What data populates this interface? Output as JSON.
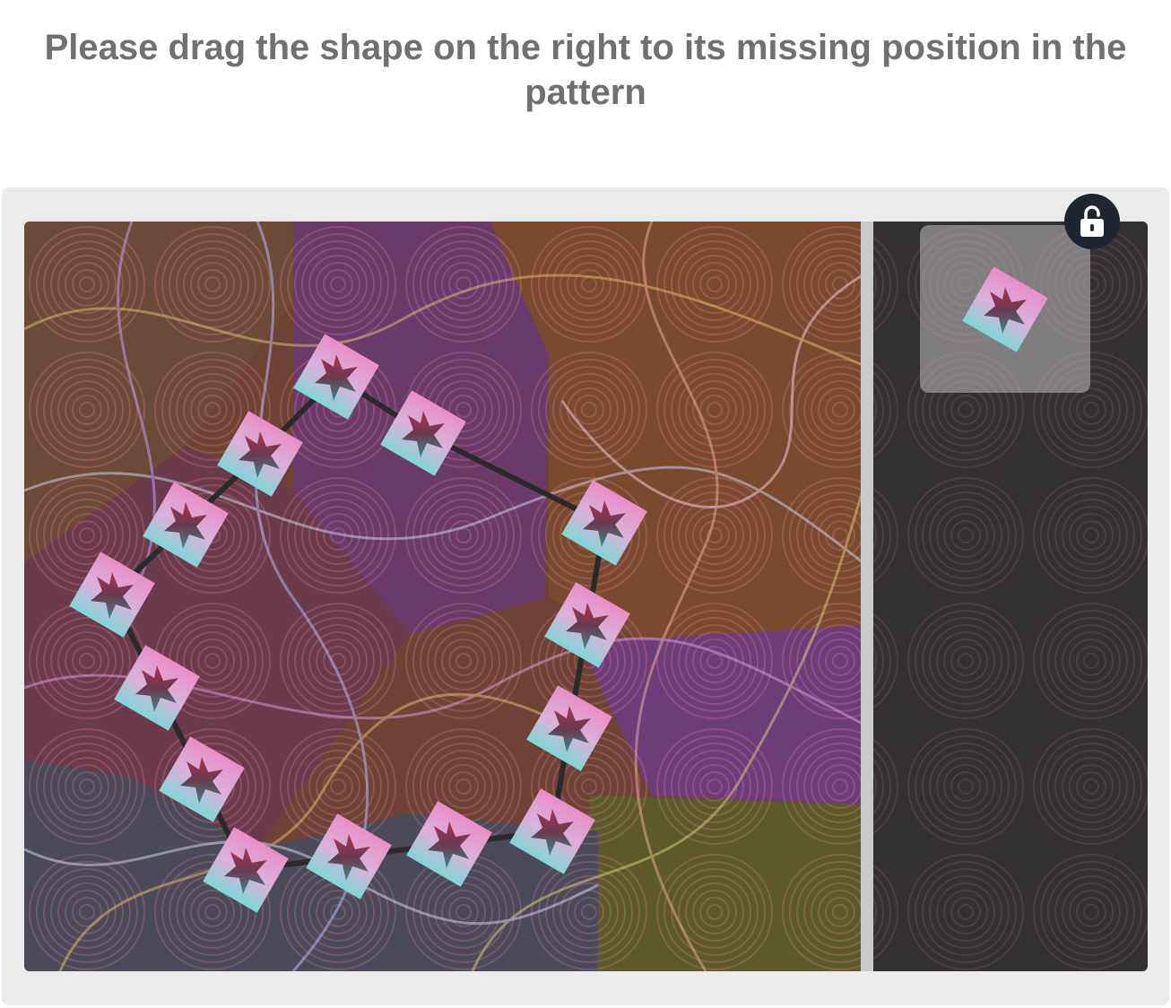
{
  "instruction": "Please drag the shape on the right to its missing position in the pattern",
  "icons": {
    "lock": "lock-icon",
    "tile": "star-tile-icon"
  },
  "colors": {
    "instruction_text": "#707070",
    "panel_bg": "#ebebeb",
    "lock_button_bg": "#1f2630",
    "tile_top": "#e88fc6",
    "tile_bottom": "#7fd6d6",
    "star_top": "#a8334f",
    "star_bottom": "#3a8a84"
  }
}
